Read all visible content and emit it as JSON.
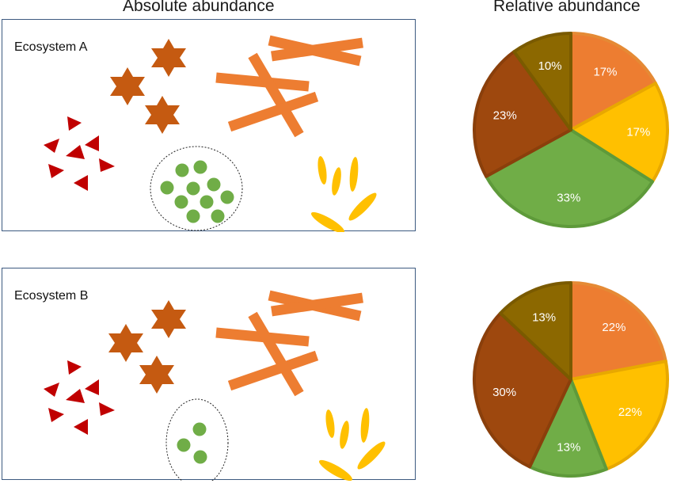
{
  "headings": {
    "absolute": "Absolute abundance",
    "relative": "Relative abundance"
  },
  "ecosystems": [
    {
      "label": "Ecosystem A"
    },
    {
      "label": "Ecosystem B"
    }
  ],
  "colors": {
    "orange": "#ED7D31",
    "yellow": "#FFC000",
    "green": "#70AD47",
    "brown": "#9E480E",
    "olive": "#8C6800",
    "red": "#C00000",
    "star": "#C55A11"
  },
  "chart_data": [
    {
      "type": "pie",
      "title": "Relative abundance",
      "categories": [
        "orange",
        "yellow",
        "green",
        "brown",
        "olive"
      ],
      "values": [
        17,
        17,
        33,
        23,
        10
      ],
      "labels": [
        "17%",
        "17%",
        "33%",
        "23%",
        "10%"
      ]
    },
    {
      "type": "pie",
      "title": "Relative abundance",
      "categories": [
        "orange",
        "yellow",
        "green",
        "brown",
        "olive"
      ],
      "values": [
        22,
        22,
        13,
        30,
        13
      ],
      "labels": [
        "22%",
        "22%",
        "13%",
        "30%",
        "13%"
      ]
    }
  ]
}
